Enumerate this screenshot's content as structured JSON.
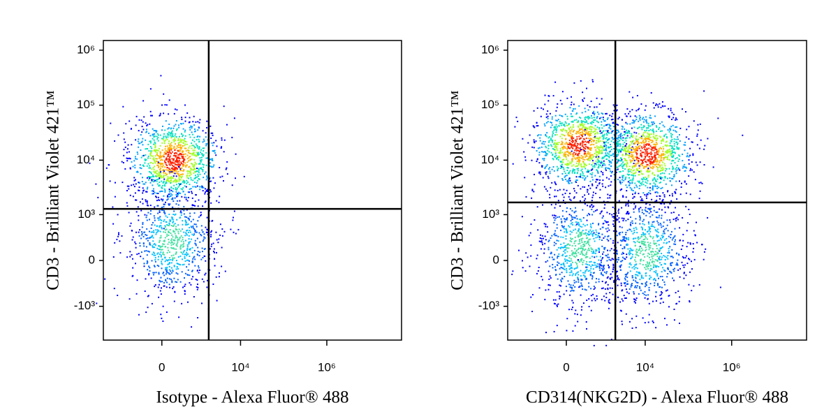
{
  "chart_data": [
    {
      "type": "scatter",
      "x_label": "Isotype - Alexa Fluor® 488",
      "y_label": "CD3 - Brilliant Violet 421™",
      "scale": "asinh",
      "asinh_cofactor": 300,
      "xlim": [
        -3400,
        54000000
      ],
      "ylim": [
        -4200,
        1500000
      ],
      "xticks": [
        0,
        {
          "value": 10000,
          "label": "10⁴"
        },
        {
          "value": 1000000,
          "label": "10⁶"
        }
      ],
      "yticks": [
        {
          "value": 1000000,
          "label": "10⁶"
        },
        {
          "value": 100000,
          "label": "10⁵"
        },
        {
          "value": 10000,
          "label": "10⁴"
        },
        {
          "value": 1000,
          "label": "10³"
        },
        0,
        {
          "value": -1000,
          "label": "-10³"
        }
      ],
      "gate_x": 1818,
      "gate_y": 1285,
      "x": [
        190,
        160
      ],
      "y": [
        10400,
        274
      ]
    },
    {
      "type": "scatter",
      "x_label": "CD314(NKG2D) - Alexa Fluor® 488",
      "y_label": "CD3 - Brilliant Violet 421™",
      "scale": "asinh",
      "asinh_cofactor": 300,
      "xlim": [
        -3400,
        54000000
      ],
      "ylim": [
        -4200,
        1500000
      ],
      "xticks": [
        0,
        {
          "value": 10000,
          "label": "10⁴"
        },
        {
          "value": 1000000,
          "label": "10⁶"
        }
      ],
      "yticks": [
        {
          "value": 1000000,
          "label": "10⁶"
        },
        {
          "value": 100000,
          "label": "10⁵"
        },
        {
          "value": 10000,
          "label": "10⁴"
        },
        {
          "value": 1000,
          "label": "10³"
        },
        0,
        {
          "value": -1000,
          "label": "-10³"
        }
      ],
      "gate_x": 2030,
      "gate_y": 1690,
      "x": [
        200,
        10500,
        210,
        10500
      ],
      "y": [
        19200,
        13100,
        165,
        117
      ]
    }
  ]
}
